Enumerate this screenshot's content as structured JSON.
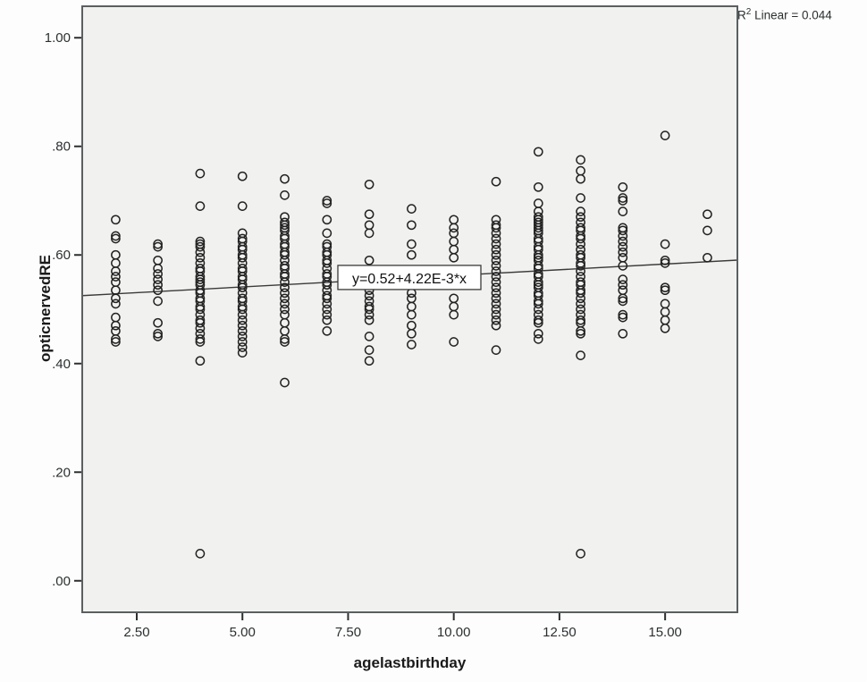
{
  "annotation": {
    "r": "R",
    "sup": "2",
    "rest": " Linear = 0.044"
  },
  "chart_data": {
    "type": "scatter",
    "title": "",
    "xlabel": "agelastbirthday",
    "ylabel": "opticnervedRE",
    "xlim": [
      1.21,
      16.71
    ],
    "ylim": [
      -0.058,
      1.058
    ],
    "grid": false,
    "legend": "none",
    "xticks": [
      {
        "value": 2.5,
        "label": "2.50"
      },
      {
        "value": 5.0,
        "label": "5.00"
      },
      {
        "value": 7.5,
        "label": "7.50"
      },
      {
        "value": 10.0,
        "label": "10.00"
      },
      {
        "value": 12.5,
        "label": "12.50"
      },
      {
        "value": 15.0,
        "label": "15.00"
      }
    ],
    "yticks": [
      {
        "value": 0.0,
        "label": ".00"
      },
      {
        "value": 0.2,
        "label": ".20"
      },
      {
        "value": 0.4,
        "label": ".40"
      },
      {
        "value": 0.6,
        "label": ".60"
      },
      {
        "value": 0.8,
        "label": ".80"
      },
      {
        "value": 1.0,
        "label": "1.00"
      }
    ],
    "regression": {
      "label": "y=0.52+4.22E-3*x",
      "intercept": 0.52,
      "slope": 0.00422,
      "r_squared": 0.044
    },
    "marker": {
      "shape": "open-circle",
      "radius": 4.6,
      "color": "#222222"
    },
    "colors": {
      "plot_bg": "#f1f1ef",
      "page_bg": "#fdfdfd",
      "frame": "#5a5f61",
      "line": "#3a3a3a",
      "equation_box_bg": "#ffffff",
      "equation_box_border": "#3a3a3a"
    },
    "groups": [
      {
        "x": 2,
        "values": [
          0.665,
          0.635,
          0.63,
          0.6,
          0.585,
          0.57,
          0.56,
          0.55,
          0.535,
          0.52,
          0.51,
          0.485,
          0.47,
          0.46,
          0.445,
          0.44
        ]
      },
      {
        "x": 3,
        "values": [
          0.62,
          0.615,
          0.59,
          0.575,
          0.565,
          0.555,
          0.545,
          0.535,
          0.515,
          0.475,
          0.455,
          0.45
        ]
      },
      {
        "x": 4,
        "values": [
          0.75,
          0.69,
          0.625,
          0.62,
          0.615,
          0.605,
          0.595,
          0.585,
          0.575,
          0.57,
          0.56,
          0.555,
          0.55,
          0.545,
          0.535,
          0.53,
          0.52,
          0.515,
          0.505,
          0.5,
          0.49,
          0.48,
          0.475,
          0.465,
          0.455,
          0.445,
          0.44,
          0.405,
          0.05
        ]
      },
      {
        "x": 5,
        "values": [
          0.745,
          0.69,
          0.64,
          0.63,
          0.625,
          0.615,
          0.61,
          0.6,
          0.595,
          0.585,
          0.575,
          0.57,
          0.56,
          0.555,
          0.545,
          0.54,
          0.53,
          0.52,
          0.515,
          0.505,
          0.5,
          0.49,
          0.48,
          0.47,
          0.46,
          0.45,
          0.44,
          0.43,
          0.42
        ]
      },
      {
        "x": 6,
        "values": [
          0.74,
          0.71,
          0.67,
          0.66,
          0.655,
          0.65,
          0.645,
          0.635,
          0.63,
          0.62,
          0.615,
          0.605,
          0.6,
          0.59,
          0.58,
          0.575,
          0.565,
          0.56,
          0.55,
          0.54,
          0.53,
          0.52,
          0.51,
          0.5,
          0.49,
          0.475,
          0.46,
          0.445,
          0.44,
          0.365
        ]
      },
      {
        "x": 7,
        "values": [
          0.7,
          0.695,
          0.665,
          0.64,
          0.62,
          0.615,
          0.605,
          0.6,
          0.59,
          0.585,
          0.575,
          0.565,
          0.56,
          0.55,
          0.545,
          0.535,
          0.525,
          0.52,
          0.51,
          0.5,
          0.49,
          0.48,
          0.46
        ]
      },
      {
        "x": 8,
        "values": [
          0.73,
          0.675,
          0.655,
          0.64,
          0.59,
          0.545,
          0.535,
          0.525,
          0.515,
          0.505,
          0.5,
          0.49,
          0.48,
          0.45,
          0.425,
          0.405
        ]
      },
      {
        "x": 9,
        "values": [
          0.685,
          0.655,
          0.62,
          0.6,
          0.545,
          0.53,
          0.52,
          0.505,
          0.49,
          0.47,
          0.455,
          0.435
        ]
      },
      {
        "x": 10,
        "values": [
          0.665,
          0.65,
          0.64,
          0.625,
          0.61,
          0.595,
          0.555,
          0.52,
          0.505,
          0.49,
          0.44
        ]
      },
      {
        "x": 11,
        "values": [
          0.735,
          0.665,
          0.655,
          0.65,
          0.64,
          0.63,
          0.62,
          0.61,
          0.6,
          0.59,
          0.58,
          0.57,
          0.56,
          0.55,
          0.54,
          0.53,
          0.52,
          0.51,
          0.5,
          0.49,
          0.48,
          0.47,
          0.425
        ]
      },
      {
        "x": 12,
        "values": [
          0.79,
          0.725,
          0.695,
          0.68,
          0.67,
          0.665,
          0.66,
          0.655,
          0.65,
          0.645,
          0.64,
          0.63,
          0.625,
          0.615,
          0.61,
          0.6,
          0.595,
          0.59,
          0.58,
          0.575,
          0.565,
          0.56,
          0.55,
          0.545,
          0.54,
          0.53,
          0.525,
          0.515,
          0.51,
          0.5,
          0.49,
          0.48,
          0.475,
          0.455,
          0.445
        ]
      },
      {
        "x": 13,
        "values": [
          0.775,
          0.755,
          0.74,
          0.705,
          0.68,
          0.67,
          0.66,
          0.65,
          0.645,
          0.635,
          0.63,
          0.62,
          0.61,
          0.6,
          0.595,
          0.585,
          0.58,
          0.57,
          0.56,
          0.55,
          0.545,
          0.535,
          0.53,
          0.52,
          0.51,
          0.5,
          0.49,
          0.48,
          0.475,
          0.46,
          0.455,
          0.415,
          0.05
        ]
      },
      {
        "x": 14,
        "values": [
          0.725,
          0.705,
          0.7,
          0.68,
          0.65,
          0.645,
          0.635,
          0.625,
          0.615,
          0.605,
          0.595,
          0.58,
          0.555,
          0.545,
          0.535,
          0.52,
          0.515,
          0.49,
          0.485,
          0.455
        ]
      },
      {
        "x": 15,
        "values": [
          0.82,
          0.62,
          0.59,
          0.585,
          0.54,
          0.535,
          0.51,
          0.495,
          0.48,
          0.465
        ]
      },
      {
        "x": 16,
        "values": [
          0.675,
          0.645,
          0.595
        ]
      }
    ]
  }
}
